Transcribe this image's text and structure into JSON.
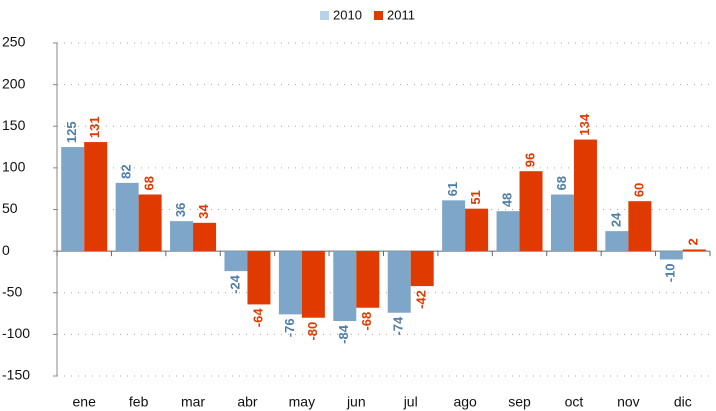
{
  "chart_data": {
    "type": "bar",
    "categories": [
      "ene",
      "feb",
      "mar",
      "abr",
      "may",
      "jun",
      "jul",
      "ago",
      "sep",
      "oct",
      "nov",
      "dic"
    ],
    "series": [
      {
        "name": "2010",
        "color": "#7ea6c9",
        "values": [
          125,
          82,
          36,
          -24,
          -76,
          -84,
          -74,
          61,
          48,
          68,
          24,
          -10
        ]
      },
      {
        "name": "2011",
        "color": "#e03a00",
        "values": [
          131,
          68,
          34,
          -64,
          -80,
          -68,
          -42,
          51,
          96,
          134,
          60,
          2
        ]
      }
    ],
    "ylim": [
      -150,
      250
    ],
    "yticks": [
      -150,
      -100,
      -50,
      0,
      50,
      100,
      150,
      200,
      250
    ],
    "grid": true,
    "legend": "top"
  }
}
